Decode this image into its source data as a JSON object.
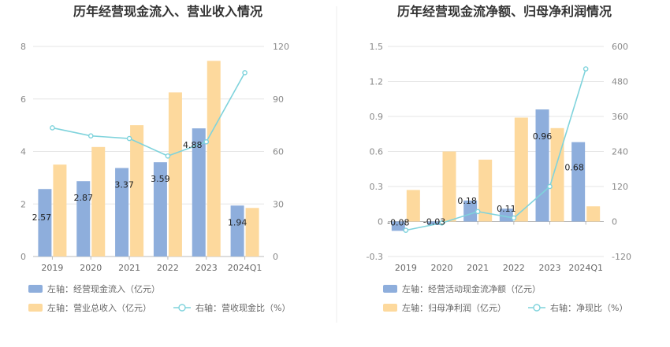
{
  "colors": {
    "bar_blue": "#8eaedc",
    "bar_orange": "#fdd99d",
    "line_teal": "#7fd3dc",
    "grid": "#e6e6e6",
    "divider": "#eeeeee"
  },
  "chart_data": [
    {
      "type": "bar",
      "title": "历年经营现金流入、营业收入情况",
      "categories": [
        "2019",
        "2020",
        "2021",
        "2022",
        "2023",
        "2024Q1"
      ],
      "left_axis": {
        "range": [
          0,
          8
        ],
        "ticks": [
          "0",
          "2",
          "4",
          "6",
          "8"
        ]
      },
      "right_axis": {
        "range": [
          0,
          120
        ],
        "ticks": [
          "0",
          "30",
          "60",
          "90",
          "120"
        ]
      },
      "series": [
        {
          "name": "左轴：经营现金流入（亿元）",
          "kind": "bar",
          "axis": "left",
          "values": [
            2.57,
            2.87,
            3.37,
            3.59,
            4.88,
            1.94
          ],
          "labels": [
            "2.57",
            "2.87",
            "3.37",
            "3.59",
            "4.88",
            "1.94"
          ]
        },
        {
          "name": "左轴：营业总收入（亿元）",
          "kind": "bar",
          "axis": "left",
          "values": [
            3.5,
            4.17,
            5.0,
            6.25,
            7.45,
            1.85
          ]
        },
        {
          "name": "右轴：营收现金比（%）",
          "kind": "line",
          "axis": "right",
          "values": [
            73.5,
            68.9,
            67.4,
            57.4,
            65.5,
            105.0
          ]
        }
      ]
    },
    {
      "type": "bar",
      "title": "历年经营现金流净额、归母净利润情况",
      "categories": [
        "2019",
        "2020",
        "2021",
        "2022",
        "2023",
        "2024Q1"
      ],
      "left_axis": {
        "range": [
          -0.3,
          1.5
        ],
        "ticks": [
          "-0.3",
          "0",
          "0.3",
          "0.6",
          "0.9",
          "1.2",
          "1.5"
        ]
      },
      "right_axis": {
        "range": [
          -120,
          600
        ],
        "ticks": [
          "-120",
          "0",
          "120",
          "240",
          "360",
          "480",
          "600"
        ]
      },
      "series": [
        {
          "name": "左轴：经营活动现金流净额（亿元）",
          "kind": "bar",
          "axis": "left",
          "values": [
            -0.08,
            -0.03,
            0.18,
            0.11,
            0.96,
            0.68
          ],
          "labels": [
            "-0.08",
            "-0.03",
            "0.18",
            "0.11",
            "0.96",
            "0.68"
          ]
        },
        {
          "name": "左轴：归母净利润（亿元）",
          "kind": "bar",
          "axis": "left",
          "values": [
            0.27,
            0.6,
            0.53,
            0.89,
            0.8,
            0.13
          ]
        },
        {
          "name": "右轴：净现比（%）",
          "kind": "line",
          "axis": "right",
          "values": [
            -30,
            -5,
            34,
            12,
            120,
            523
          ]
        }
      ]
    }
  ]
}
